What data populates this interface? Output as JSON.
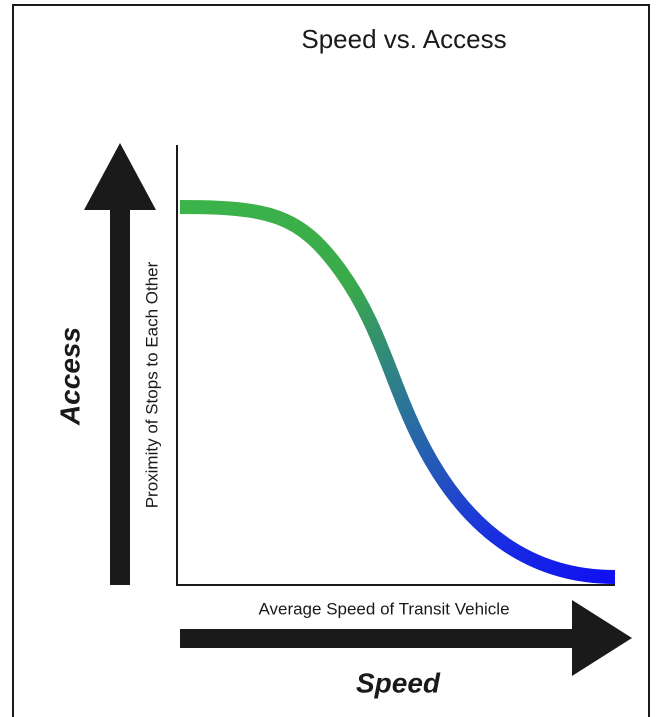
{
  "title": "Speed vs. Access",
  "y_axis_label": "Proximity of Stops to Each Other",
  "x_axis_label": "Average Speed of Transit Vehicle",
  "y_arrow_label": "Access",
  "x_arrow_label": "Speed"
}
